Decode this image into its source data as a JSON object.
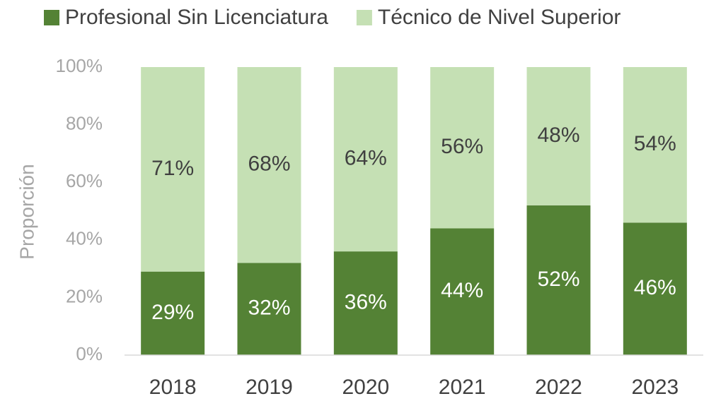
{
  "chart_data": {
    "type": "stacked_bar",
    "categories": [
      "2018",
      "2019",
      "2020",
      "2021",
      "2022",
      "2023"
    ],
    "series": [
      {
        "name": "Profesional Sin Licenciatura",
        "color": "#548235",
        "values": [
          29,
          32,
          36,
          44,
          52,
          46
        ],
        "value_labels": [
          "29%",
          "32%",
          "36%",
          "44%",
          "52%",
          "46%"
        ]
      },
      {
        "name": "Técnico de Nivel Superior",
        "color": "#c5e0b4",
        "values": [
          71,
          68,
          64,
          56,
          48,
          54
        ],
        "value_labels": [
          "71%",
          "68%",
          "64%",
          "56%",
          "48%",
          "54%"
        ]
      }
    ],
    "y_label": "Proporción",
    "ylim": [
      0,
      100
    ],
    "yticks": [
      {
        "value": 0,
        "label": "0%"
      },
      {
        "value": 20,
        "label": "20%"
      },
      {
        "value": 40,
        "label": "40%"
      },
      {
        "value": 60,
        "label": "60%"
      },
      {
        "value": 80,
        "label": "80%"
      },
      {
        "value": 100,
        "label": "100%"
      }
    ],
    "legend": "top"
  }
}
